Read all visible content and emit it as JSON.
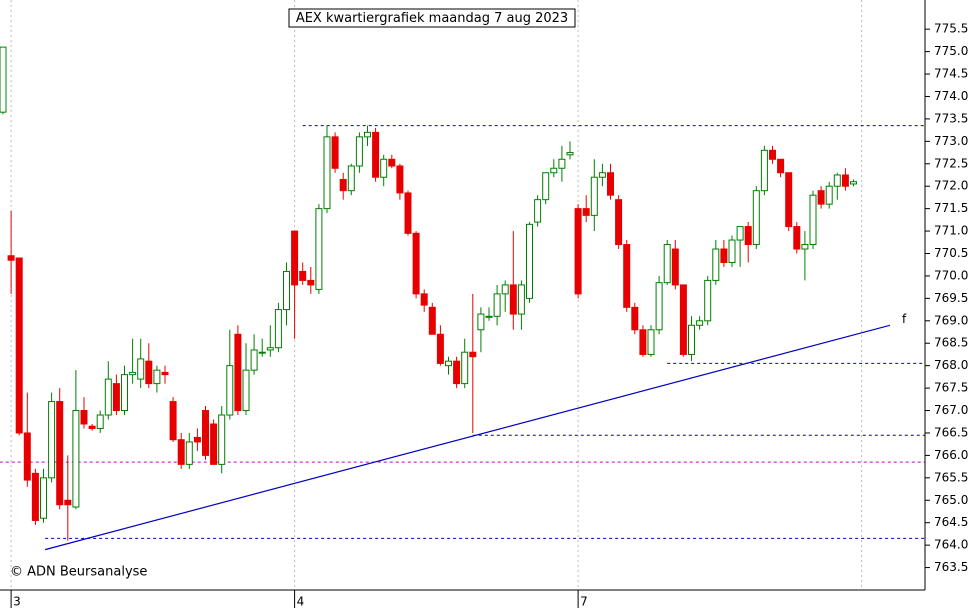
{
  "chart_data": {
    "type": "candlestick",
    "title": "AEX kwartiergrafiek maandag 7 aug 2023",
    "copyright": "© ADN Beursanalyse",
    "up_color": "#008000",
    "down_color": "#e80000",
    "ylim": [
      763.0,
      776.15
    ],
    "yticks": [
      763.5,
      {
        "value": 764,
        "label": "764.0"
      },
      764.5,
      {
        "value": 765,
        "label": "765.0"
      },
      765.5,
      {
        "value": 766,
        "label": "766.0"
      },
      766.5,
      {
        "value": 767,
        "label": "767.0"
      },
      767.5,
      {
        "value": 768,
        "label": "768.0"
      },
      768.5,
      {
        "value": 769,
        "label": "769.0"
      },
      769.5,
      {
        "value": 770,
        "label": "770.0"
      },
      770.5,
      {
        "value": 771,
        "label": "771.0"
      },
      771.5,
      {
        "value": 772,
        "label": "772.0"
      },
      772.5,
      {
        "value": 773,
        "label": "773.0"
      },
      773.5,
      {
        "value": 774,
        "label": "774.0"
      },
      774.5,
      {
        "value": 775,
        "label": "775.0"
      },
      775.5
    ],
    "x": [
      null,
      "3",
      null,
      null,
      null,
      null,
      null,
      null,
      null,
      null,
      null,
      null,
      null,
      null,
      null,
      null,
      null,
      null,
      null,
      null,
      null,
      null,
      null,
      null,
      null,
      null,
      null,
      null,
      null,
      null,
      null,
      null,
      null,
      null,
      null,
      null,
      "4",
      null,
      null,
      null,
      null,
      null,
      null,
      null,
      null,
      null,
      null,
      null,
      null,
      null,
      null,
      null,
      null,
      null,
      null,
      null,
      null,
      null,
      null,
      null,
      null,
      null,
      null,
      null,
      null,
      null,
      null,
      null,
      null,
      null,
      null,
      "7",
      null,
      null,
      null,
      null,
      null,
      null,
      null,
      null,
      null,
      null,
      null,
      null,
      null,
      null,
      null,
      null,
      null,
      null,
      null,
      null,
      null,
      null,
      null,
      null,
      null,
      null,
      null,
      null,
      null,
      null,
      null,
      null,
      null,
      null
    ],
    "open": [
      773.65,
      770.45,
      770.4,
      766.5,
      765.6,
      764.6,
      765.5,
      767.2,
      765.0,
      764.85,
      767.0,
      766.65,
      766.6,
      766.9,
      767.6,
      767.0,
      767.8,
      767.7,
      768.1,
      767.6,
      767.85,
      767.2,
      766.35,
      765.8,
      766.4,
      767.0,
      766.7,
      765.8,
      766.9,
      768.7,
      767.0,
      767.9,
      768.3,
      768.35,
      768.4,
      769.25,
      771.0,
      770.1,
      769.9,
      769.7,
      771.5,
      773.1,
      772.15,
      771.9,
      772.45,
      773.1,
      773.2,
      772.2,
      772.6,
      772.45,
      771.85,
      770.95,
      769.6,
      769.3,
      768.7,
      768.0,
      768.1,
      767.6,
      768.3,
      768.8,
      769.1,
      769.1,
      769.6,
      769.8,
      769.15,
      769.5,
      771.2,
      771.7,
      772.3,
      772.4,
      772.7,
      771.5,
      771.5,
      771.35,
      772.2,
      772.3,
      771.7,
      770.7,
      769.3,
      768.8,
      768.25,
      768.8,
      769.85,
      770.6,
      769.8,
      768.25,
      768.9,
      769.0,
      769.9,
      770.6,
      770.3,
      770.8,
      771.1,
      770.7,
      771.9,
      772.8,
      772.6,
      772.3,
      771.1,
      770.6,
      770.7,
      771.9,
      771.6,
      772.0,
      772.25,
      772.05
    ],
    "high": [
      775.1,
      771.45,
      770.4,
      767.4,
      765.7,
      765.7,
      767.4,
      767.5,
      766.0,
      767.9,
      767.3,
      766.7,
      767.0,
      768.1,
      767.8,
      768.0,
      768.6,
      768.6,
      768.5,
      768.0,
      768.0,
      767.3,
      766.5,
      766.5,
      766.6,
      767.1,
      766.8,
      767.1,
      768.8,
      768.9,
      768.5,
      768.7,
      768.6,
      768.9,
      769.4,
      770.3,
      771.0,
      770.3,
      770.2,
      771.6,
      773.35,
      773.2,
      772.3,
      772.5,
      773.2,
      773.35,
      773.3,
      772.7,
      772.7,
      772.5,
      771.9,
      771.0,
      769.7,
      769.4,
      768.9,
      768.2,
      768.2,
      768.6,
      769.6,
      769.3,
      769.3,
      769.8,
      769.9,
      771.0,
      769.9,
      771.2,
      771.8,
      772.3,
      772.6,
      772.9,
      773.0,
      771.6,
      771.8,
      772.6,
      772.5,
      772.5,
      771.8,
      770.8,
      769.4,
      768.9,
      768.9,
      770.0,
      770.8,
      770.8,
      769.8,
      769.1,
      769.1,
      770.0,
      770.8,
      770.8,
      770.9,
      771.1,
      771.2,
      772.0,
      772.9,
      772.9,
      772.6,
      772.3,
      771.2,
      771.0,
      771.9,
      772.0,
      772.1,
      772.3,
      772.4,
      772.15
    ],
    "low": [
      773.6,
      769.6,
      766.45,
      765.3,
      764.45,
      764.5,
      765.4,
      764.8,
      764.1,
      764.8,
      766.6,
      766.55,
      766.5,
      766.8,
      766.9,
      766.9,
      767.6,
      767.5,
      767.5,
      767.4,
      767.6,
      766.3,
      765.7,
      765.7,
      766.1,
      765.9,
      765.8,
      765.6,
      766.8,
      766.9,
      766.9,
      767.8,
      768.2,
      768.2,
      768.3,
      768.9,
      768.6,
      769.8,
      769.6,
      769.6,
      771.4,
      772.3,
      771.7,
      771.8,
      772.3,
      772.9,
      772.1,
      772.0,
      772.4,
      771.7,
      770.9,
      769.5,
      769.2,
      768.7,
      768.0,
      767.8,
      767.5,
      767.5,
      766.5,
      768.3,
      769.0,
      768.9,
      769.2,
      768.8,
      768.8,
      769.4,
      771.1,
      771.6,
      772.2,
      772.1,
      772.6,
      769.5,
      771.2,
      771.0,
      772.0,
      771.7,
      770.6,
      769.2,
      768.7,
      768.2,
      768.2,
      768.7,
      769.8,
      769.7,
      768.2,
      768.1,
      768.8,
      768.9,
      769.8,
      770.2,
      770.2,
      770.2,
      770.3,
      770.6,
      771.8,
      772.5,
      772.2,
      771.0,
      770.5,
      769.9,
      770.6,
      771.5,
      771.5,
      771.7,
      771.9,
      772.0
    ],
    "close": [
      775.1,
      770.35,
      766.5,
      765.45,
      764.55,
      765.5,
      767.2,
      764.9,
      764.9,
      767.0,
      766.7,
      766.6,
      766.9,
      767.7,
      767.0,
      767.8,
      767.85,
      768.15,
      767.6,
      767.9,
      767.8,
      766.35,
      765.8,
      766.3,
      766.3,
      766.0,
      765.8,
      766.9,
      768.0,
      767.0,
      767.9,
      768.35,
      768.3,
      768.4,
      769.25,
      770.1,
      769.8,
      769.9,
      769.8,
      771.5,
      773.1,
      772.4,
      771.9,
      772.45,
      773.1,
      773.2,
      772.2,
      772.6,
      772.45,
      771.85,
      770.95,
      769.6,
      769.35,
      768.7,
      768.05,
      768.1,
      767.6,
      768.3,
      768.2,
      769.15,
      769.1,
      769.6,
      769.8,
      769.15,
      769.8,
      771.15,
      771.7,
      772.3,
      772.4,
      772.6,
      772.75,
      769.6,
      771.35,
      772.2,
      772.3,
      771.8,
      770.7,
      769.3,
      768.8,
      768.25,
      768.8,
      769.85,
      770.7,
      769.8,
      768.25,
      768.9,
      769.0,
      769.9,
      770.6,
      770.3,
      770.8,
      771.1,
      770.7,
      771.9,
      772.8,
      772.6,
      772.3,
      771.1,
      770.6,
      770.7,
      771.8,
      771.6,
      772.0,
      772.25,
      772.0,
      772.1
    ],
    "trendline": {
      "label": "f",
      "color": "#0000c0",
      "x": [
        5.2,
        109.5
      ],
      "y": [
        763.9,
        768.9
      ]
    },
    "levels": [
      {
        "value": 773.35,
        "start": 37,
        "color": "#0000c0"
      },
      {
        "value": 768.05,
        "start": 82,
        "color": "#0000c0"
      },
      {
        "value": 766.45,
        "start": 58,
        "color": "#0000c0"
      },
      {
        "value": 764.15,
        "start": 5.2,
        "color": "#0000c0"
      },
      {
        "value": 765.85,
        "start": -0.4,
        "color": "#c000c0"
      }
    ]
  }
}
